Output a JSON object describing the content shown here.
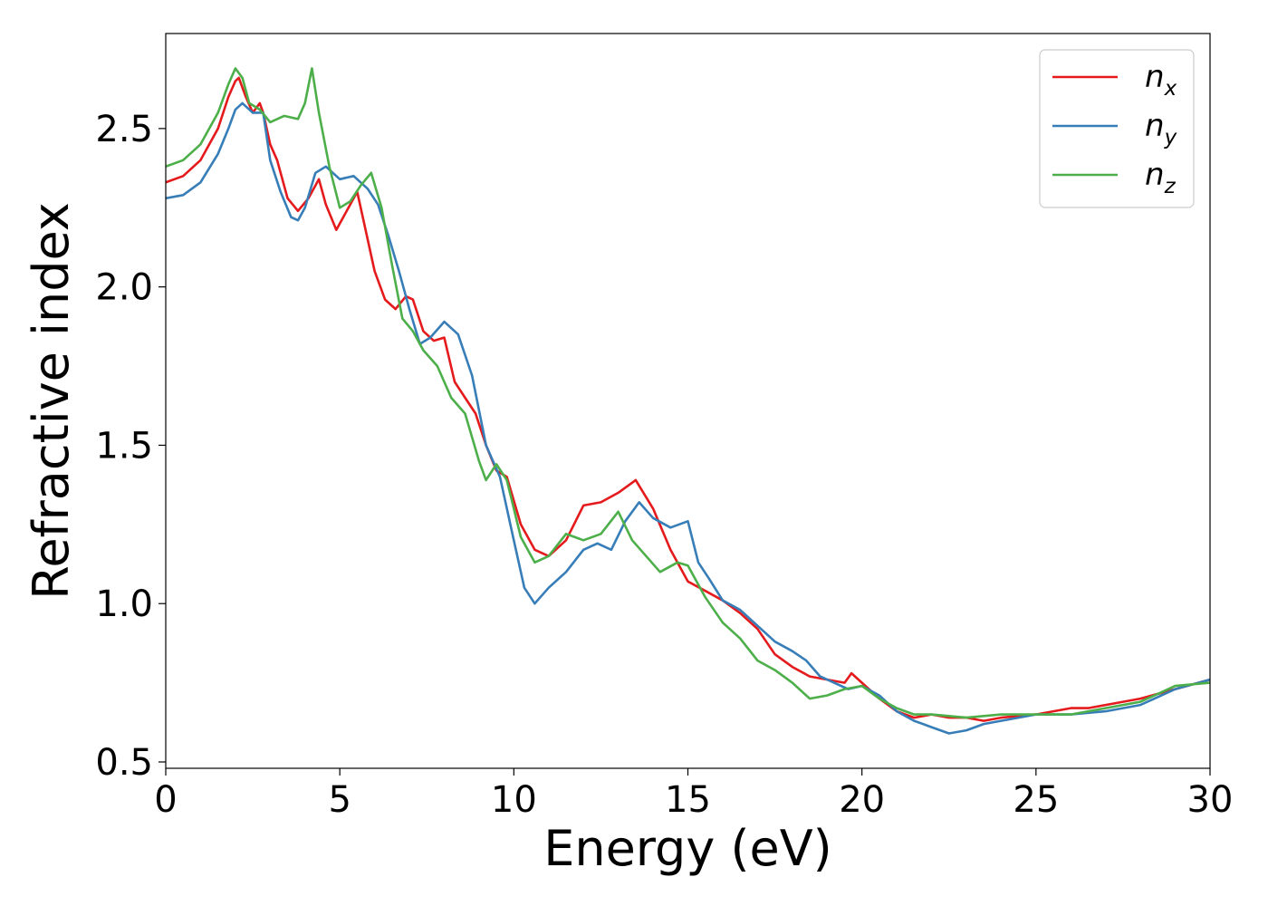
{
  "chart_data": {
    "type": "line",
    "xlabel": "Energy (eV)",
    "ylabel": "Refractive index",
    "xlim": [
      0,
      30
    ],
    "ylim": [
      0.48,
      2.8
    ],
    "xticks": [
      0,
      5,
      10,
      15,
      20,
      25,
      30
    ],
    "yticks": [
      0.5,
      1.0,
      1.5,
      2.0,
      2.5
    ],
    "xtick_labels": [
      "0",
      "5",
      "10",
      "15",
      "20",
      "25",
      "30"
    ],
    "ytick_labels": [
      "0.5",
      "1.0",
      "1.5",
      "2.0",
      "2.5"
    ],
    "grid": false,
    "legend_position": "top-right",
    "series": [
      {
        "name": "n_x",
        "label_base": "n",
        "label_sub": "x",
        "color": "#e41a1c",
        "x": [
          0,
          0.5,
          1.0,
          1.5,
          1.8,
          2.0,
          2.1,
          2.3,
          2.5,
          2.7,
          2.8,
          3.0,
          3.2,
          3.5,
          3.8,
          4.1,
          4.4,
          4.6,
          4.9,
          5.1,
          5.5,
          5.7,
          6.0,
          6.3,
          6.6,
          6.9,
          7.1,
          7.4,
          7.7,
          8.0,
          8.3,
          8.6,
          8.9,
          9.2,
          9.5,
          9.8,
          10.2,
          10.6,
          11.0,
          11.5,
          12.0,
          12.5,
          13.0,
          13.5,
          14.0,
          14.5,
          15.0,
          15.5,
          16.0,
          16.5,
          17.0,
          17.5,
          18.0,
          18.5,
          19.0,
          19.5,
          19.7,
          20.0,
          20.5,
          21.0,
          21.5,
          22.0,
          22.5,
          23.0,
          23.5,
          24.0,
          25.0,
          25.5,
          26.0,
          26.5,
          27.0,
          28.0,
          29.0,
          30.0
        ],
        "y": [
          2.33,
          2.35,
          2.4,
          2.5,
          2.6,
          2.65,
          2.66,
          2.6,
          2.55,
          2.58,
          2.55,
          2.45,
          2.4,
          2.28,
          2.24,
          2.28,
          2.34,
          2.26,
          2.18,
          2.22,
          2.3,
          2.2,
          2.05,
          1.96,
          1.93,
          1.97,
          1.96,
          1.86,
          1.83,
          1.84,
          1.7,
          1.65,
          1.6,
          1.5,
          1.42,
          1.4,
          1.25,
          1.17,
          1.15,
          1.2,
          1.31,
          1.32,
          1.35,
          1.39,
          1.3,
          1.17,
          1.07,
          1.04,
          1.01,
          0.97,
          0.92,
          0.84,
          0.8,
          0.77,
          0.76,
          0.75,
          0.78,
          0.75,
          0.7,
          0.66,
          0.64,
          0.65,
          0.64,
          0.64,
          0.63,
          0.64,
          0.65,
          0.66,
          0.67,
          0.67,
          0.68,
          0.7,
          0.73,
          0.76
        ]
      },
      {
        "name": "n_y",
        "label_base": "n",
        "label_sub": "y",
        "color": "#377eb8",
        "x": [
          0,
          0.5,
          1.0,
          1.5,
          1.8,
          2.0,
          2.2,
          2.5,
          2.8,
          3.0,
          3.3,
          3.6,
          3.8,
          4.0,
          4.3,
          4.6,
          5.0,
          5.4,
          5.8,
          6.1,
          6.4,
          6.7,
          7.0,
          7.3,
          7.6,
          8.0,
          8.4,
          8.8,
          9.2,
          9.6,
          10.0,
          10.3,
          10.6,
          11.0,
          11.5,
          12.0,
          12.4,
          12.8,
          13.2,
          13.6,
          14.0,
          14.5,
          15.0,
          15.3,
          15.6,
          16.0,
          16.5,
          17.0,
          17.5,
          18.0,
          18.4,
          18.8,
          19.2,
          19.6,
          20.0,
          20.5,
          21.0,
          21.5,
          22.0,
          22.5,
          23.0,
          23.5,
          24.0,
          25.0,
          26.0,
          27.0,
          28.0,
          29.0,
          30.0
        ],
        "y": [
          2.28,
          2.29,
          2.33,
          2.42,
          2.5,
          2.56,
          2.58,
          2.55,
          2.55,
          2.4,
          2.3,
          2.22,
          2.21,
          2.25,
          2.36,
          2.38,
          2.34,
          2.35,
          2.31,
          2.26,
          2.16,
          2.05,
          1.93,
          1.82,
          1.84,
          1.89,
          1.85,
          1.72,
          1.5,
          1.4,
          1.2,
          1.05,
          1.0,
          1.05,
          1.1,
          1.17,
          1.19,
          1.17,
          1.26,
          1.32,
          1.27,
          1.24,
          1.26,
          1.13,
          1.08,
          1.01,
          0.98,
          0.93,
          0.88,
          0.85,
          0.82,
          0.77,
          0.75,
          0.73,
          0.74,
          0.71,
          0.66,
          0.63,
          0.61,
          0.59,
          0.6,
          0.62,
          0.63,
          0.65,
          0.65,
          0.66,
          0.68,
          0.73,
          0.76
        ]
      },
      {
        "name": "n_z",
        "label_base": "n",
        "label_sub": "z",
        "color": "#4daf4a",
        "x": [
          0,
          0.5,
          1.0,
          1.5,
          1.8,
          2.0,
          2.2,
          2.4,
          2.7,
          3.0,
          3.4,
          3.8,
          4.0,
          4.2,
          4.4,
          4.7,
          5.0,
          5.3,
          5.6,
          5.9,
          6.2,
          6.5,
          6.8,
          7.1,
          7.4,
          7.8,
          8.2,
          8.6,
          9.0,
          9.2,
          9.5,
          9.8,
          10.2,
          10.6,
          11.0,
          11.5,
          12.0,
          12.5,
          13.0,
          13.4,
          13.8,
          14.2,
          14.7,
          15.0,
          15.5,
          16.0,
          16.5,
          17.0,
          17.5,
          18.0,
          18.5,
          19.0,
          19.5,
          20.0,
          20.5,
          21.0,
          21.5,
          22.0,
          23.0,
          24.0,
          25.0,
          26.0,
          27.0,
          28.0,
          29.0,
          30.0
        ],
        "y": [
          2.38,
          2.4,
          2.45,
          2.55,
          2.64,
          2.69,
          2.66,
          2.58,
          2.56,
          2.52,
          2.54,
          2.53,
          2.58,
          2.69,
          2.55,
          2.38,
          2.25,
          2.27,
          2.32,
          2.36,
          2.25,
          2.07,
          1.9,
          1.86,
          1.8,
          1.75,
          1.65,
          1.6,
          1.45,
          1.39,
          1.44,
          1.39,
          1.21,
          1.13,
          1.15,
          1.22,
          1.2,
          1.22,
          1.29,
          1.2,
          1.15,
          1.1,
          1.13,
          1.12,
          1.02,
          0.94,
          0.89,
          0.82,
          0.79,
          0.75,
          0.7,
          0.71,
          0.73,
          0.74,
          0.7,
          0.67,
          0.65,
          0.65,
          0.64,
          0.65,
          0.65,
          0.65,
          0.67,
          0.69,
          0.74,
          0.75
        ]
      }
    ]
  }
}
